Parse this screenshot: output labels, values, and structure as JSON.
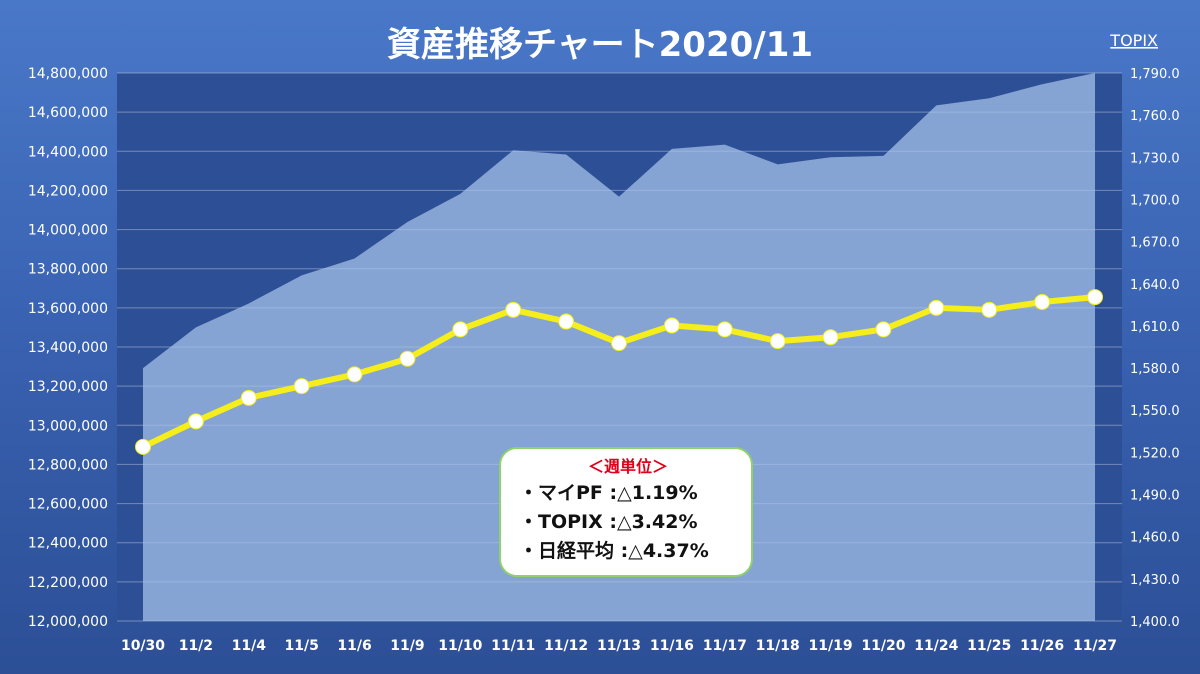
{
  "chart_data": {
    "type": "line",
    "title": "資産推移チャート2020/11",
    "right_axis_label": "TOPIX",
    "categories": [
      "10/30",
      "11/2",
      "11/4",
      "11/5",
      "11/6",
      "11/9",
      "11/10",
      "11/11",
      "11/12",
      "11/13",
      "11/16",
      "11/17",
      "11/18",
      "11/19",
      "11/20",
      "11/24",
      "11/25",
      "11/26",
      "11/27"
    ],
    "left_axis": {
      "ylim": [
        12000000,
        14800000
      ],
      "ticks": [
        "12,000,000",
        "12,200,000",
        "12,400,000",
        "12,600,000",
        "12,800,000",
        "13,000,000",
        "13,200,000",
        "13,400,000",
        "13,600,000",
        "13,800,000",
        "14,000,000",
        "14,200,000",
        "14,400,000",
        "14,600,000",
        "14,800,000"
      ]
    },
    "right_axis": {
      "ylim": [
        1400,
        1790
      ],
      "ticks": [
        "1,400.0",
        "1,430.0",
        "1,460.0",
        "1,490.0",
        "1,520.0",
        "1,550.0",
        "1,580.0",
        "1,610.0",
        "1,640.0",
        "1,670.0",
        "1,700.0",
        "1,730.0",
        "1,760.0",
        "1,790.0"
      ]
    },
    "grid": true,
    "series": [
      {
        "name": "",
        "axis": "left",
        "style": "line-markers",
        "color": "#f5ee1a",
        "values": [
          12890000,
          13020000,
          13140000,
          13200000,
          13260000,
          13340000,
          13490000,
          13590000,
          13530000,
          13420000,
          13510000,
          13490000,
          13430000,
          13450000,
          13490000,
          13600000,
          13590000,
          13630000,
          13655000
        ]
      },
      {
        "name": "TOPIX",
        "axis": "right",
        "style": "area",
        "color": "#a8c4ec",
        "values": [
          1580,
          1609,
          1626,
          1646,
          1658,
          1684,
          1704,
          1735,
          1732,
          1702,
          1736,
          1739,
          1725,
          1730,
          1731,
          1767,
          1772,
          1782,
          1790
        ]
      }
    ]
  },
  "summary": {
    "heading": "＜週単位＞",
    "lines": [
      "・マイPF :△1.19%",
      "・TOPIX  :△3.42%",
      "・日経平均 :△4.37%"
    ]
  }
}
